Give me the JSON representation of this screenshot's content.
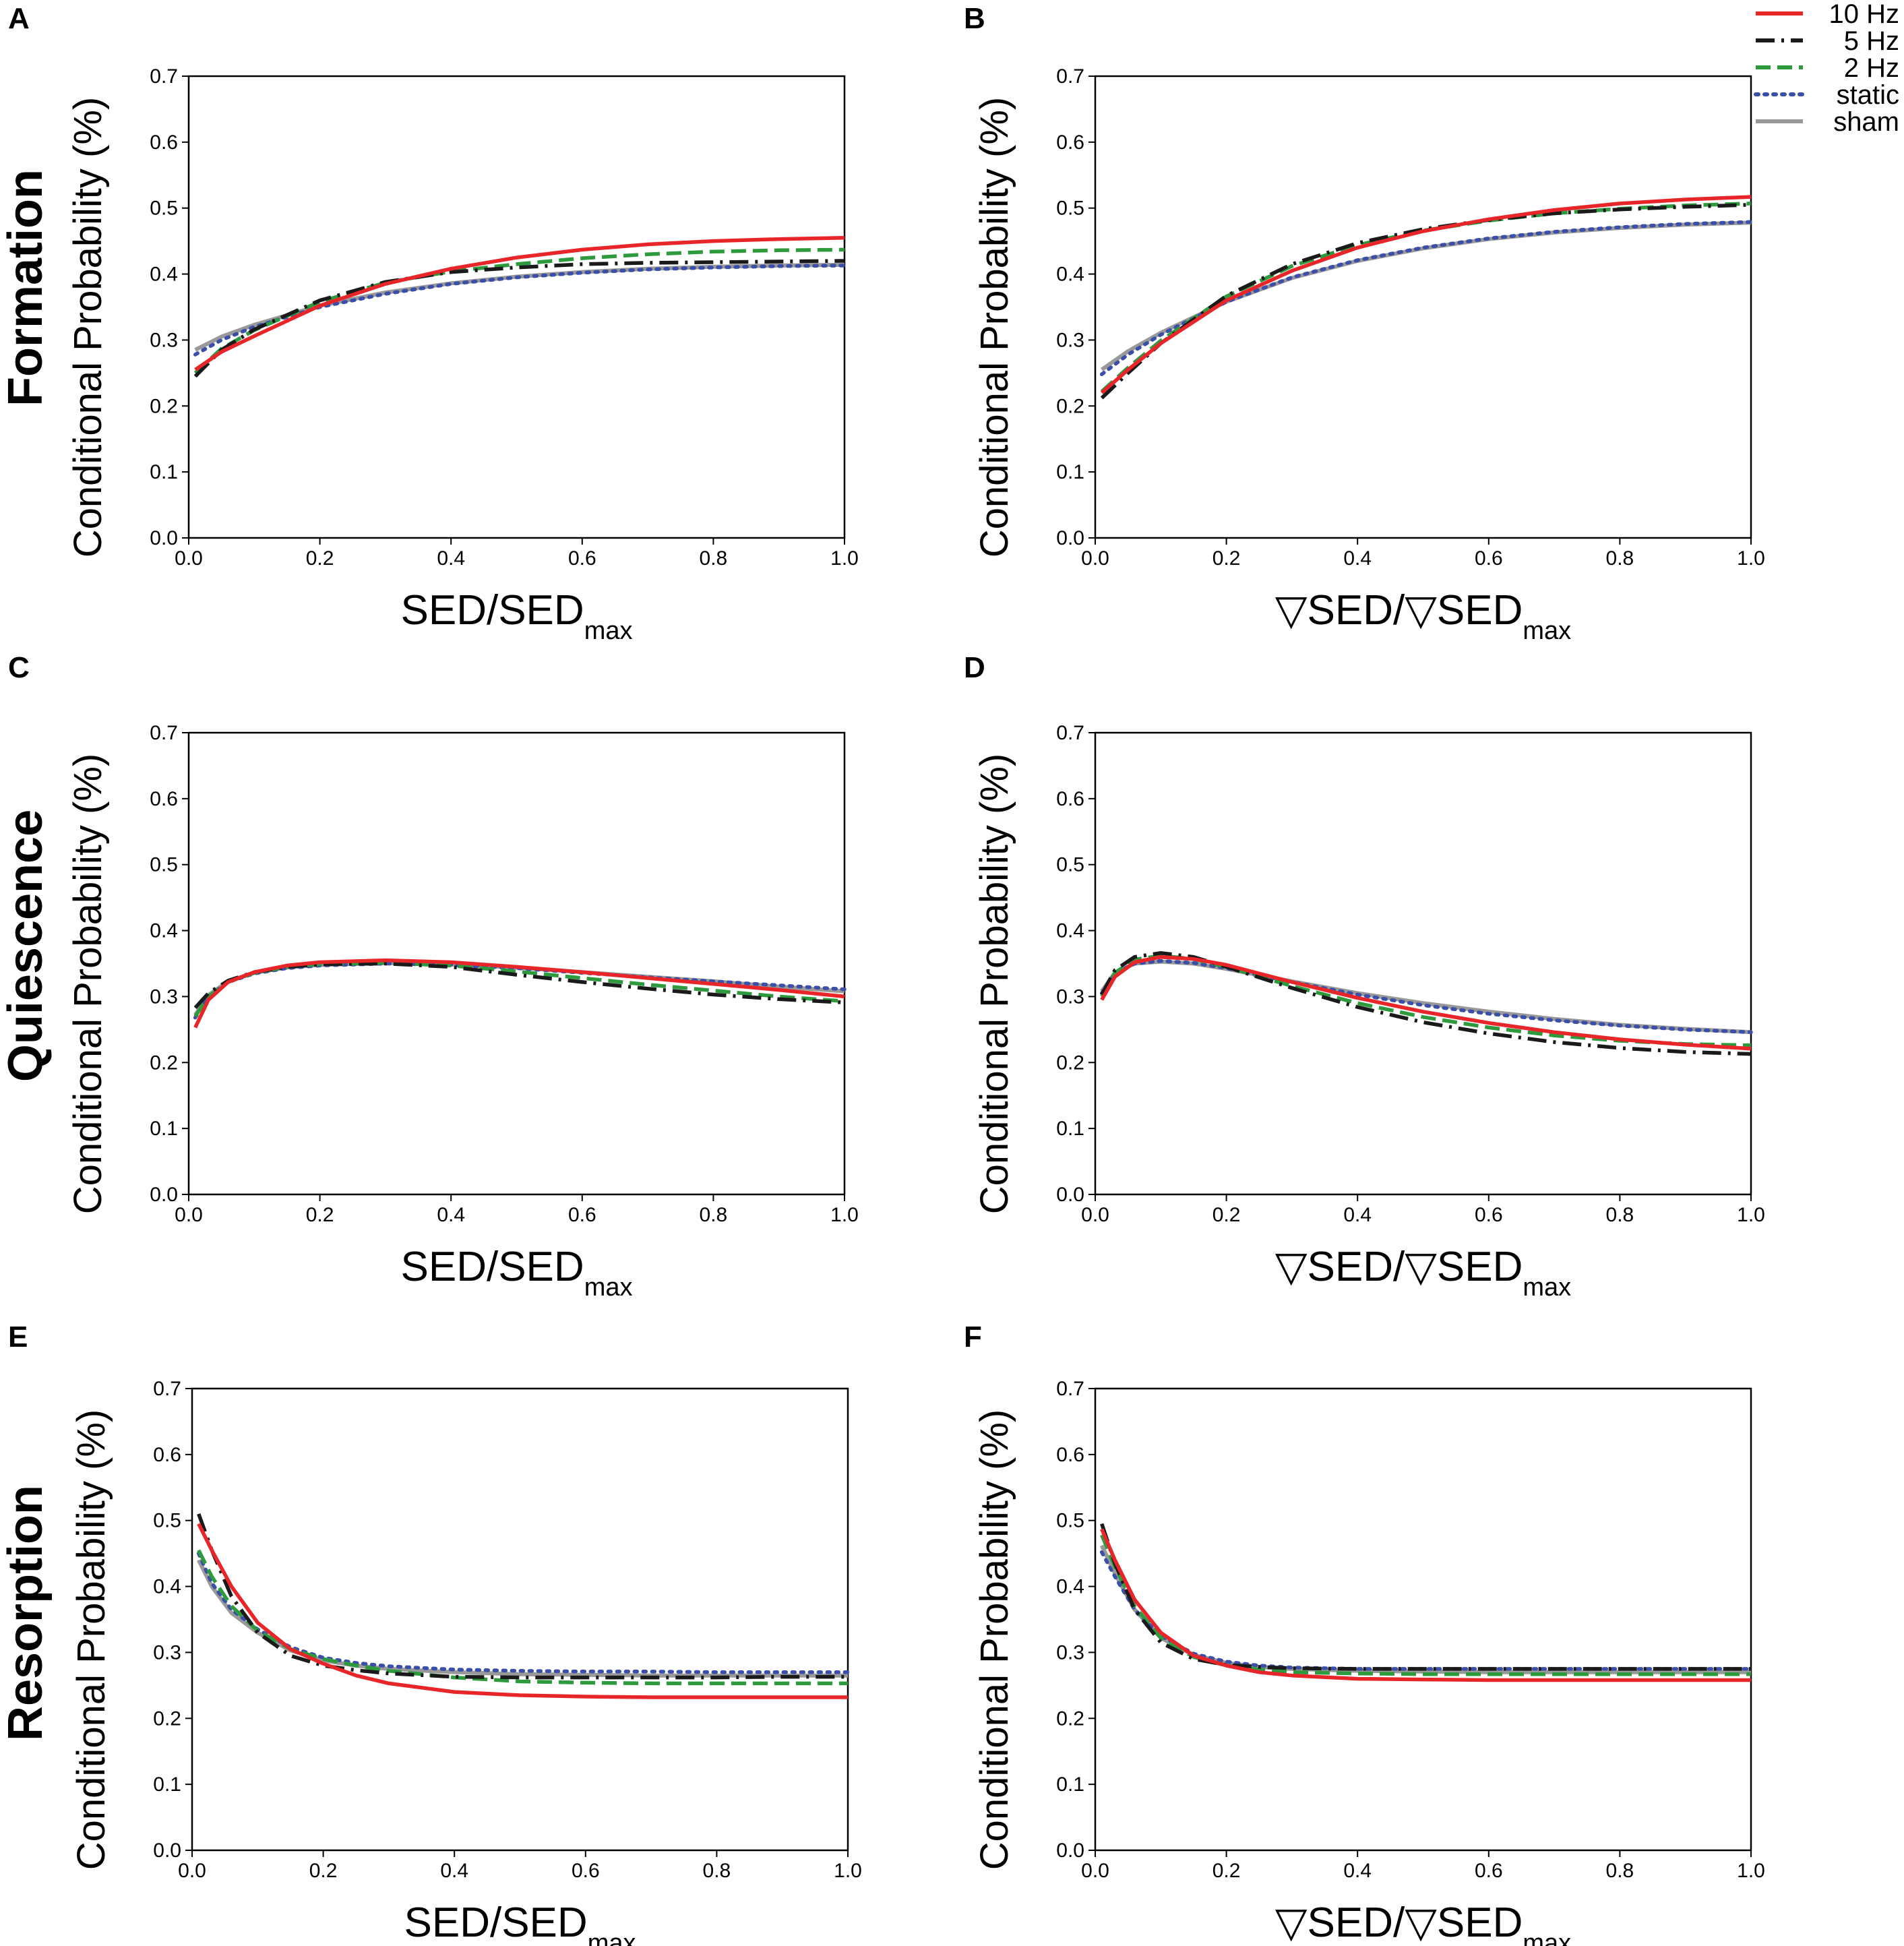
{
  "legend": [
    {
      "label": "10 Hz",
      "color": "#e8262a",
      "dash": "solid"
    },
    {
      "label": "5 Hz",
      "color": "#1a1a1a",
      "dash": "dashdot"
    },
    {
      "label": "2 Hz",
      "color": "#2e9a3e",
      "dash": "dashed"
    },
    {
      "label": "static",
      "color": "#3b4fa8",
      "dash": "dotted"
    },
    {
      "label": "sham",
      "color": "#999999",
      "dash": "solid"
    }
  ],
  "rows": [
    {
      "title": "Formation"
    },
    {
      "title": "Quiescence"
    },
    {
      "title": "Resorption"
    }
  ],
  "chart_data": [
    {
      "panel": "A",
      "type": "line",
      "ylabel": "Conditional Probability (%)",
      "xlabel": {
        "main": "SED/SED",
        "sub": "max"
      },
      "xlim": [
        0,
        1
      ],
      "ylim": [
        0,
        0.7
      ],
      "xticks": [
        "0.0",
        "0.2",
        "0.4",
        "0.6",
        "0.8",
        "1.0"
      ],
      "yticks": [
        "0.0",
        "0.1",
        "0.2",
        "0.3",
        "0.4",
        "0.5",
        "0.6",
        "0.7"
      ],
      "x": [
        0.01,
        0.05,
        0.1,
        0.2,
        0.3,
        0.4,
        0.5,
        0.6,
        0.7,
        0.8,
        0.9,
        1.0
      ],
      "series": [
        {
          "name": "10 Hz",
          "values": [
            0.255,
            0.282,
            0.306,
            0.352,
            0.385,
            0.408,
            0.425,
            0.437,
            0.445,
            0.45,
            0.453,
            0.455
          ]
        },
        {
          "name": "5 Hz",
          "values": [
            0.245,
            0.285,
            0.316,
            0.36,
            0.388,
            0.403,
            0.41,
            0.415,
            0.417,
            0.418,
            0.419,
            0.42
          ]
        },
        {
          "name": "2 Hz",
          "values": [
            0.25,
            0.287,
            0.315,
            0.358,
            0.387,
            0.404,
            0.415,
            0.424,
            0.43,
            0.434,
            0.436,
            0.437
          ]
        },
        {
          "name": "static",
          "values": [
            0.278,
            0.3,
            0.32,
            0.35,
            0.37,
            0.385,
            0.395,
            0.402,
            0.407,
            0.41,
            0.412,
            0.413
          ]
        },
        {
          "name": "sham",
          "values": [
            0.285,
            0.305,
            0.323,
            0.352,
            0.372,
            0.386,
            0.396,
            0.403,
            0.408,
            0.411,
            0.413,
            0.414
          ]
        }
      ]
    },
    {
      "panel": "B",
      "type": "line",
      "ylabel": "Conditional Probability (%)",
      "xlabel": {
        "main": "▽SED/▽SED",
        "sub": "max"
      },
      "xlim": [
        0,
        1
      ],
      "ylim": [
        0,
        0.7
      ],
      "xticks": [
        "0.0",
        "0.2",
        "0.4",
        "0.6",
        "0.8",
        "1.0"
      ],
      "yticks": [
        "0.0",
        "0.1",
        "0.2",
        "0.3",
        "0.4",
        "0.5",
        "0.6",
        "0.7"
      ],
      "x": [
        0.01,
        0.05,
        0.1,
        0.2,
        0.3,
        0.4,
        0.5,
        0.6,
        0.7,
        0.8,
        0.9,
        1.0
      ],
      "series": [
        {
          "name": "10 Hz",
          "values": [
            0.22,
            0.255,
            0.295,
            0.36,
            0.405,
            0.44,
            0.465,
            0.483,
            0.497,
            0.507,
            0.513,
            0.517
          ]
        },
        {
          "name": "5 Hz",
          "values": [
            0.212,
            0.25,
            0.295,
            0.367,
            0.415,
            0.447,
            0.468,
            0.482,
            0.492,
            0.498,
            0.502,
            0.505
          ]
        },
        {
          "name": "2 Hz",
          "values": [
            0.222,
            0.258,
            0.299,
            0.366,
            0.412,
            0.444,
            0.466,
            0.481,
            0.492,
            0.499,
            0.504,
            0.507
          ]
        },
        {
          "name": "static",
          "values": [
            0.248,
            0.278,
            0.308,
            0.358,
            0.395,
            0.421,
            0.44,
            0.454,
            0.464,
            0.471,
            0.476,
            0.479
          ]
        },
        {
          "name": "sham",
          "values": [
            0.255,
            0.283,
            0.311,
            0.358,
            0.394,
            0.42,
            0.439,
            0.453,
            0.463,
            0.47,
            0.475,
            0.478
          ]
        }
      ]
    },
    {
      "panel": "C",
      "type": "line",
      "ylabel": "Conditional Probability (%)",
      "xlabel": {
        "main": "SED/SED",
        "sub": "max"
      },
      "xlim": [
        0,
        1
      ],
      "ylim": [
        0,
        0.7
      ],
      "xticks": [
        "0.0",
        "0.2",
        "0.4",
        "0.6",
        "0.8",
        "1.0"
      ],
      "yticks": [
        "0.0",
        "0.1",
        "0.2",
        "0.3",
        "0.4",
        "0.5",
        "0.6",
        "0.7"
      ],
      "x": [
        0.01,
        0.03,
        0.06,
        0.1,
        0.15,
        0.2,
        0.3,
        0.4,
        0.5,
        0.6,
        0.7,
        0.8,
        0.9,
        1.0
      ],
      "series": [
        {
          "name": "10 Hz",
          "values": [
            0.253,
            0.295,
            0.322,
            0.337,
            0.347,
            0.352,
            0.355,
            0.352,
            0.345,
            0.337,
            0.328,
            0.319,
            0.31,
            0.3
          ]
        },
        {
          "name": "5 Hz",
          "values": [
            0.283,
            0.305,
            0.324,
            0.337,
            0.345,
            0.349,
            0.35,
            0.345,
            0.333,
            0.322,
            0.312,
            0.303,
            0.296,
            0.291
          ]
        },
        {
          "name": "2 Hz",
          "values": [
            0.27,
            0.3,
            0.322,
            0.336,
            0.345,
            0.349,
            0.351,
            0.347,
            0.338,
            0.328,
            0.318,
            0.309,
            0.3,
            0.293
          ]
        },
        {
          "name": "static",
          "values": [
            0.268,
            0.3,
            0.322,
            0.335,
            0.343,
            0.347,
            0.35,
            0.348,
            0.343,
            0.336,
            0.329,
            0.323,
            0.317,
            0.311
          ]
        },
        {
          "name": "sham",
          "values": [
            0.272,
            0.302,
            0.323,
            0.336,
            0.344,
            0.348,
            0.351,
            0.349,
            0.344,
            0.337,
            0.33,
            0.323,
            0.315,
            0.308
          ]
        }
      ]
    },
    {
      "panel": "D",
      "type": "line",
      "ylabel": "Conditional Probability (%)",
      "xlabel": {
        "main": "▽SED/▽SED",
        "sub": "max"
      },
      "xlim": [
        0,
        1
      ],
      "ylim": [
        0,
        0.7
      ],
      "xticks": [
        "0.0",
        "0.2",
        "0.4",
        "0.6",
        "0.8",
        "1.0"
      ],
      "yticks": [
        "0.0",
        "0.1",
        "0.2",
        "0.3",
        "0.4",
        "0.5",
        "0.6",
        "0.7"
      ],
      "x": [
        0.01,
        0.03,
        0.06,
        0.1,
        0.15,
        0.2,
        0.3,
        0.4,
        0.5,
        0.6,
        0.7,
        0.8,
        0.9,
        1.0
      ],
      "series": [
        {
          "name": "10 Hz",
          "values": [
            0.295,
            0.33,
            0.352,
            0.36,
            0.357,
            0.348,
            0.322,
            0.298,
            0.277,
            0.26,
            0.246,
            0.235,
            0.227,
            0.221
          ]
        },
        {
          "name": "5 Hz",
          "values": [
            0.303,
            0.34,
            0.36,
            0.366,
            0.36,
            0.345,
            0.313,
            0.284,
            0.261,
            0.244,
            0.231,
            0.222,
            0.216,
            0.213
          ]
        },
        {
          "name": "2 Hz",
          "values": [
            0.3,
            0.336,
            0.356,
            0.362,
            0.357,
            0.345,
            0.316,
            0.29,
            0.269,
            0.253,
            0.241,
            0.233,
            0.228,
            0.226
          ]
        },
        {
          "name": "static",
          "values": [
            0.305,
            0.335,
            0.35,
            0.354,
            0.351,
            0.343,
            0.322,
            0.303,
            0.287,
            0.274,
            0.264,
            0.256,
            0.25,
            0.246
          ]
        },
        {
          "name": "sham",
          "values": [
            0.308,
            0.336,
            0.35,
            0.353,
            0.35,
            0.342,
            0.323,
            0.305,
            0.29,
            0.277,
            0.266,
            0.257,
            0.251,
            0.246
          ]
        }
      ]
    },
    {
      "panel": "E",
      "type": "line",
      "ylabel": "Conditional Probability (%)",
      "xlabel": {
        "main": "SED/SED",
        "sub": "max"
      },
      "xlim": [
        0,
        1
      ],
      "ylim": [
        0,
        0.7
      ],
      "xticks": [
        "0.0",
        "0.2",
        "0.4",
        "0.6",
        "0.8",
        "1.0"
      ],
      "yticks": [
        "0.0",
        "0.1",
        "0.2",
        "0.3",
        "0.4",
        "0.5",
        "0.6",
        "0.7"
      ],
      "x": [
        0.01,
        0.03,
        0.06,
        0.1,
        0.15,
        0.2,
        0.25,
        0.3,
        0.4,
        0.5,
        0.6,
        0.7,
        0.8,
        0.9,
        1.0
      ],
      "series": [
        {
          "name": "10 Hz",
          "values": [
            0.495,
            0.455,
            0.4,
            0.345,
            0.305,
            0.283,
            0.265,
            0.253,
            0.24,
            0.235,
            0.233,
            0.232,
            0.232,
            0.232,
            0.232
          ]
        },
        {
          "name": "5 Hz",
          "values": [
            0.51,
            0.455,
            0.385,
            0.33,
            0.295,
            0.28,
            0.273,
            0.268,
            0.263,
            0.262,
            0.262,
            0.262,
            0.262,
            0.263,
            0.263
          ]
        },
        {
          "name": "2 Hz",
          "values": [
            0.455,
            0.415,
            0.37,
            0.333,
            0.305,
            0.29,
            0.28,
            0.272,
            0.262,
            0.256,
            0.254,
            0.253,
            0.253,
            0.253,
            0.253
          ]
        },
        {
          "name": "static",
          "values": [
            0.45,
            0.405,
            0.365,
            0.335,
            0.308,
            0.292,
            0.284,
            0.279,
            0.274,
            0.272,
            0.271,
            0.271,
            0.27,
            0.27,
            0.27
          ]
        },
        {
          "name": "sham",
          "values": [
            0.44,
            0.4,
            0.36,
            0.33,
            0.303,
            0.288,
            0.28,
            0.275,
            0.27,
            0.267,
            0.266,
            0.265,
            0.265,
            0.265,
            0.265
          ]
        }
      ]
    },
    {
      "panel": "F",
      "type": "line",
      "ylabel": "Conditional Probability (%)",
      "xlabel": {
        "main": "▽SED/▽SED",
        "sub": "max"
      },
      "xlim": [
        0,
        1
      ],
      "ylim": [
        0,
        0.7
      ],
      "xticks": [
        "0.0",
        "0.2",
        "0.4",
        "0.6",
        "0.8",
        "1.0"
      ],
      "yticks": [
        "0.0",
        "0.1",
        "0.2",
        "0.3",
        "0.4",
        "0.5",
        "0.6",
        "0.7"
      ],
      "x": [
        0.01,
        0.03,
        0.06,
        0.1,
        0.15,
        0.2,
        0.25,
        0.3,
        0.4,
        0.5,
        0.6,
        0.7,
        0.8,
        0.9,
        1.0
      ],
      "series": [
        {
          "name": "10 Hz",
          "values": [
            0.487,
            0.44,
            0.38,
            0.33,
            0.295,
            0.28,
            0.27,
            0.265,
            0.26,
            0.259,
            0.258,
            0.258,
            0.258,
            0.258,
            0.258
          ]
        },
        {
          "name": "5 Hz",
          "values": [
            0.495,
            0.435,
            0.365,
            0.315,
            0.29,
            0.281,
            0.278,
            0.276,
            0.275,
            0.275,
            0.275,
            0.275,
            0.275,
            0.275,
            0.275
          ]
        },
        {
          "name": "2 Hz",
          "values": [
            0.478,
            0.43,
            0.37,
            0.322,
            0.293,
            0.28,
            0.274,
            0.27,
            0.268,
            0.267,
            0.267,
            0.267,
            0.267,
            0.267,
            0.267
          ]
        },
        {
          "name": "static",
          "values": [
            0.452,
            0.415,
            0.365,
            0.325,
            0.298,
            0.286,
            0.28,
            0.277,
            0.275,
            0.275,
            0.275,
            0.275,
            0.275,
            0.275,
            0.275
          ]
        },
        {
          "name": "sham",
          "values": [
            0.462,
            0.42,
            0.365,
            0.322,
            0.296,
            0.284,
            0.278,
            0.275,
            0.272,
            0.271,
            0.27,
            0.27,
            0.27,
            0.27,
            0.27
          ]
        }
      ]
    }
  ]
}
